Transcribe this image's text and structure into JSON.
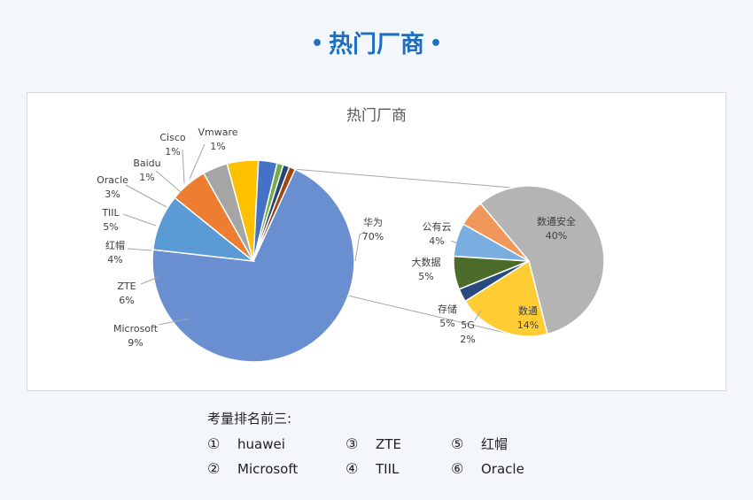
{
  "header": {
    "title": "热门厂商",
    "bullet": "•"
  },
  "chart_data": {
    "type": "pie",
    "title": "热门厂商",
    "main_pie": {
      "slices": [
        {
          "label": "华为",
          "value": 70,
          "display": "70%",
          "color": "#6a8fd0"
        },
        {
          "label": "Microsoft",
          "value": 9,
          "display": "9%",
          "color": "#5b9bd5"
        },
        {
          "label": "ZTE",
          "value": 6,
          "display": "6%",
          "color": "#ed7d31"
        },
        {
          "label": "红帽",
          "value": 4,
          "display": "4%",
          "color": "#a5a5a5"
        },
        {
          "label": "TIIL",
          "value": 5,
          "display": "5%",
          "color": "#ffc000"
        },
        {
          "label": "Oracle",
          "value": 3,
          "display": "3%",
          "color": "#4472c4"
        },
        {
          "label": "Baidu",
          "value": 1,
          "display": "1%",
          "color": "#70ad47"
        },
        {
          "label": "Cisco",
          "value": 1,
          "display": "1%",
          "color": "#264478"
        },
        {
          "label": "Vmware",
          "value": 1,
          "display": "1%",
          "color": "#9e480e"
        }
      ]
    },
    "sub_pie": {
      "slices": [
        {
          "label": "数通安全",
          "value": 40,
          "display": "40%",
          "color": "#b4b4b4"
        },
        {
          "label": "数通",
          "value": 14,
          "display": "14%",
          "color": "#ffcd33"
        },
        {
          "label": "5G",
          "value": 2,
          "display": "2%",
          "color": "#2a4a7f"
        },
        {
          "label": "存储",
          "value": 5,
          "display": "5%",
          "color": "#4a6b2a"
        },
        {
          "label": "大数据",
          "value": 5,
          "display": "5%",
          "color": "#7aaee0"
        },
        {
          "label": "公有云",
          "value": 4,
          "display": "4%",
          "color": "#f1975a"
        }
      ]
    },
    "legend": "none"
  },
  "notes": {
    "title": "考量排名前三:",
    "items": [
      {
        "num": "①",
        "name": "huawei"
      },
      {
        "num": "②",
        "name": "Microsoft"
      },
      {
        "num": "③",
        "name": "ZTE"
      },
      {
        "num": "④",
        "name": "TIIL"
      },
      {
        "num": "⑤",
        "name": "红帽"
      },
      {
        "num": "⑥",
        "name": "Oracle"
      }
    ]
  }
}
